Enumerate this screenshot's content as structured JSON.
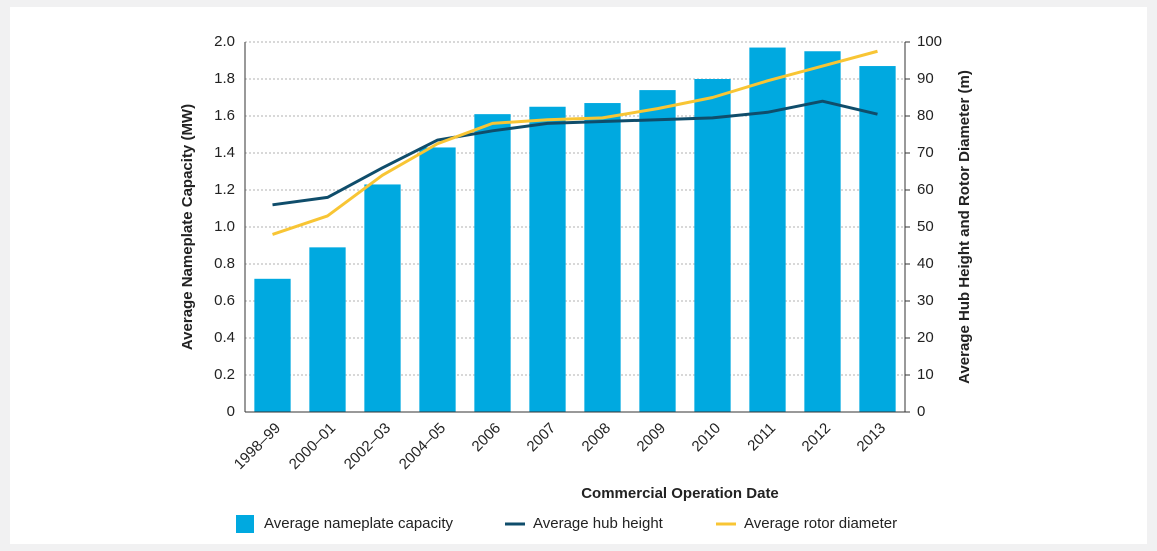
{
  "chart_data": {
    "type": "bar",
    "xlabel": "Commercial Operation Date",
    "ylabel": "Average Nameplate Capacity (MW)",
    "y2label": "Average Hub Height and Rotor Diameter (m)",
    "categories": [
      "1998–99",
      "2000–01",
      "2002–03",
      "2004–05",
      "2006",
      "2007",
      "2008",
      "2009",
      "2010",
      "2011",
      "2012",
      "2013"
    ],
    "series": [
      {
        "name": "Average nameplate capacity",
        "type": "bar",
        "color": "#00a9e0",
        "values": [
          0.72,
          0.89,
          1.23,
          1.43,
          1.61,
          1.65,
          1.67,
          1.74,
          1.8,
          1.97,
          1.95,
          1.87
        ]
      },
      {
        "name": "Average hub height",
        "type": "line",
        "axis": "y2",
        "color": "#0f4d6b",
        "values": [
          56,
          58,
          66,
          73.5,
          76,
          78,
          78.5,
          79,
          79.5,
          81,
          84,
          80.5
        ]
      },
      {
        "name": "Average rotor diameter",
        "type": "line",
        "axis": "y2",
        "color": "#f8c534",
        "values": [
          48,
          53,
          64,
          72.5,
          78,
          79,
          79.5,
          82,
          85,
          89.5,
          93.5,
          97.5
        ]
      }
    ],
    "ylim": [
      0,
      2
    ],
    "yticks": [
      0,
      0.2,
      0.4,
      0.6,
      0.8,
      {
        "value": 1,
        "label": "1.0"
      },
      1.2,
      1.4,
      1.6,
      1.8,
      {
        "value": 2,
        "label": "2.0"
      }
    ],
    "y2lim": [
      0,
      100
    ],
    "y2ticks": [
      0,
      10,
      20,
      30,
      40,
      50,
      60,
      70,
      80,
      90,
      100
    ],
    "grid": true,
    "legend": "bottom"
  }
}
